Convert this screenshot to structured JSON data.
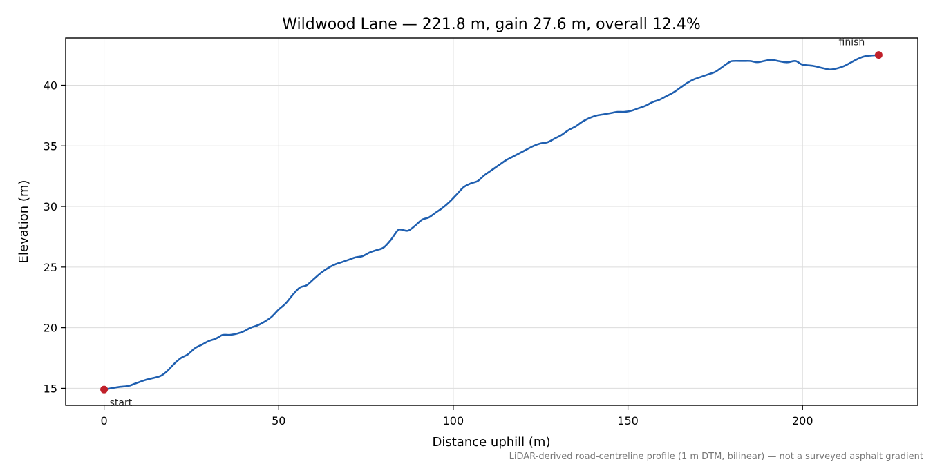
{
  "chart_data": {
    "type": "line",
    "title": "Wildwood Lane — 221.8 m, gain 27.6 m, overall 12.4%",
    "xlabel": "Distance uphill (m)",
    "ylabel": "Elevation (m)",
    "xlim": [
      -11,
      233
    ],
    "ylim": [
      13.6,
      43.9
    ],
    "xticks": [
      0,
      50,
      100,
      150,
      200
    ],
    "yticks": [
      15,
      20,
      25,
      30,
      35,
      40
    ],
    "xtick_labels": [
      "0",
      "50",
      "100",
      "150",
      "200"
    ],
    "ytick_labels": [
      "15",
      "20",
      "25",
      "30",
      "35",
      "40"
    ],
    "grid": true,
    "line_color": "#1f5fb0",
    "marker_color": "#c0202a",
    "series": [
      {
        "x": [
          0,
          4,
          7,
          9,
          12,
          16,
          18,
          20,
          22,
          24,
          26,
          28,
          30,
          32,
          34,
          36,
          38,
          40,
          42,
          44,
          46,
          48,
          50,
          52,
          54,
          56,
          58,
          60,
          62,
          64,
          66,
          68,
          70,
          72,
          74,
          76,
          78,
          80,
          82,
          84,
          85,
          87,
          89,
          91,
          93,
          95,
          97,
          99,
          101,
          103,
          105,
          107,
          109,
          111,
          113,
          115,
          117,
          119,
          121,
          123,
          125,
          127,
          129,
          131,
          133,
          135,
          137,
          139,
          141,
          143,
          145,
          147,
          149,
          151,
          153,
          155,
          157,
          159,
          161,
          163,
          165,
          167,
          169,
          171,
          173,
          175,
          177,
          179,
          180,
          183,
          185,
          187,
          189,
          191,
          193,
          195,
          196,
          198,
          200,
          203,
          206,
          208,
          210,
          212,
          214,
          216,
          218,
          221.8
        ],
        "y": [
          14.9,
          15.1,
          15.2,
          15.4,
          15.7,
          16.0,
          16.4,
          17.0,
          17.5,
          17.8,
          18.3,
          18.6,
          18.9,
          19.1,
          19.4,
          19.4,
          19.5,
          19.7,
          20.0,
          20.2,
          20.5,
          20.9,
          21.5,
          22.0,
          22.7,
          23.3,
          23.5,
          24.0,
          24.5,
          24.9,
          25.2,
          25.4,
          25.6,
          25.8,
          25.9,
          26.2,
          26.4,
          26.6,
          27.2,
          28.0,
          28.1,
          28.0,
          28.4,
          28.9,
          29.1,
          29.5,
          29.9,
          30.4,
          31.0,
          31.6,
          31.9,
          32.1,
          32.6,
          33.0,
          33.4,
          33.8,
          34.1,
          34.4,
          34.7,
          35.0,
          35.2,
          35.3,
          35.6,
          35.9,
          36.3,
          36.6,
          37.0,
          37.3,
          37.5,
          37.6,
          37.7,
          37.8,
          37.8,
          37.9,
          38.1,
          38.3,
          38.6,
          38.8,
          39.1,
          39.4,
          39.8,
          40.2,
          40.5,
          40.7,
          40.9,
          41.1,
          41.5,
          41.9,
          42.0,
          42.0,
          42.0,
          41.9,
          42.0,
          42.1,
          42.0,
          41.9,
          41.9,
          42.0,
          41.7,
          41.6,
          41.4,
          41.3,
          41.4,
          41.6,
          41.9,
          42.2,
          42.4,
          42.5
        ]
      }
    ],
    "annotations": [
      {
        "text": "start",
        "x": 0,
        "y": 14.9
      },
      {
        "text": "finish",
        "x": 221.8,
        "y": 42.5
      }
    ],
    "footnote": "LiDAR-derived road-centreline profile (1 m DTM, bilinear) — not a surveyed asphalt gradient"
  }
}
